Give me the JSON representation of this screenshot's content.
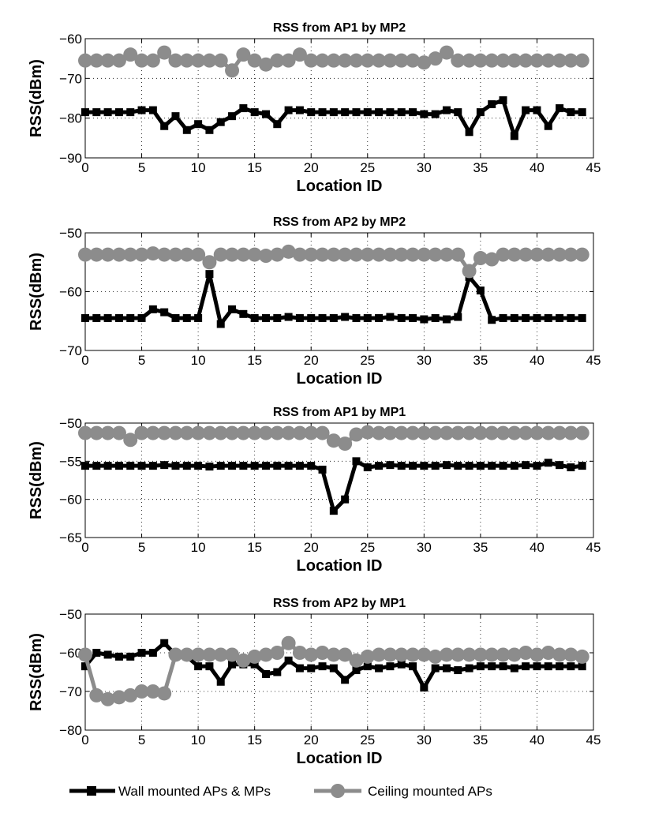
{
  "legend": {
    "placement": "bottom",
    "entries": [
      {
        "label": "Wall mounted APs & MPs",
        "color": "#000000",
        "marker": "square"
      },
      {
        "label": "Ceiling mounted APs",
        "color": "#8c8c8c",
        "marker": "circle"
      }
    ]
  },
  "chart_data": [
    {
      "type": "line",
      "title": "RSS from AP1 by MP2",
      "xlabel": "Location ID",
      "ylabel": "RSS(dBm)",
      "xlim": [
        0,
        45
      ],
      "ylim": [
        -90,
        -60
      ],
      "xticks": [
        0,
        5,
        10,
        15,
        20,
        25,
        30,
        35,
        40,
        45
      ],
      "yticks": [
        -90,
        -80,
        -70,
        -60
      ],
      "grid": true,
      "x": [
        0,
        1,
        2,
        3,
        4,
        5,
        6,
        7,
        8,
        9,
        10,
        11,
        12,
        13,
        14,
        15,
        16,
        17,
        18,
        19,
        20,
        21,
        22,
        23,
        24,
        25,
        26,
        27,
        28,
        29,
        30,
        31,
        32,
        33,
        34,
        35,
        36,
        37,
        38,
        39,
        40,
        41,
        42,
        43,
        44
      ],
      "series": [
        {
          "name": "Wall mounted APs & MPs",
          "values": [
            -78.5,
            -78.5,
            -78.5,
            -78.5,
            -78.5,
            -78,
            -78,
            -82,
            -79.5,
            -83,
            -81.5,
            -83,
            -81,
            -79.5,
            -77.5,
            -78.5,
            -79,
            -81.5,
            -78,
            -78,
            -78.5,
            -78.5,
            -78.5,
            -78.5,
            -78.5,
            -78.5,
            -78.5,
            -78.5,
            -78.5,
            -78.5,
            -79,
            -79,
            -78,
            -78.5,
            -83.5,
            -78.5,
            -76.5,
            -75.5,
            -84.5,
            -78,
            -78,
            -82,
            -77.5,
            -78.5,
            -78.5
          ]
        },
        {
          "name": "Ceiling mounted APs",
          "values": [
            -65.5,
            -65.5,
            -65.5,
            -65.5,
            -64,
            -65.5,
            -65.5,
            -63.5,
            -65.5,
            -65.5,
            -65.5,
            -65.5,
            -65.5,
            -68,
            -64,
            -65.5,
            -66.5,
            -65.5,
            -65.5,
            -64,
            -65.5,
            -65.5,
            -65.5,
            -65.5,
            -65.5,
            -65.5,
            -65.5,
            -65.5,
            -65.5,
            -65.5,
            -66,
            -65,
            -63.5,
            -65.5,
            -65.5,
            -65.5,
            -65.5,
            -65.5,
            -65.5,
            -65.5,
            -65.5,
            -65.5,
            -65.5,
            -65.5,
            -65.5
          ]
        }
      ]
    },
    {
      "type": "line",
      "title": "RSS from AP2 by MP2",
      "xlabel": "Location ID",
      "ylabel": "RSS(dBm)",
      "xlim": [
        0,
        45
      ],
      "ylim": [
        -70,
        -50
      ],
      "xticks": [
        0,
        5,
        10,
        15,
        20,
        25,
        30,
        35,
        40,
        45
      ],
      "yticks": [
        -70,
        -60,
        -50
      ],
      "grid": true,
      "x": [
        0,
        1,
        2,
        3,
        4,
        5,
        6,
        7,
        8,
        9,
        10,
        11,
        12,
        13,
        14,
        15,
        16,
        17,
        18,
        19,
        20,
        21,
        22,
        23,
        24,
        25,
        26,
        27,
        28,
        29,
        30,
        31,
        32,
        33,
        34,
        35,
        36,
        37,
        38,
        39,
        40,
        41,
        42,
        43,
        44
      ],
      "series": [
        {
          "name": "Wall mounted APs & MPs",
          "values": [
            -64.5,
            -64.5,
            -64.5,
            -64.5,
            -64.5,
            -64.5,
            -63,
            -63.5,
            -64.5,
            -64.5,
            -64.5,
            -57,
            -65.5,
            -63,
            -63.8,
            -64.5,
            -64.5,
            -64.5,
            -64.3,
            -64.5,
            -64.5,
            -64.5,
            -64.5,
            -64.3,
            -64.5,
            -64.5,
            -64.5,
            -64.3,
            -64.5,
            -64.5,
            -64.7,
            -64.5,
            -64.7,
            -64.3,
            -57.5,
            -59.8,
            -64.8,
            -64.5,
            -64.5,
            -64.5,
            -64.5,
            -64.5,
            -64.5,
            -64.5,
            -64.5
          ]
        },
        {
          "name": "Ceiling mounted APs",
          "values": [
            -53.7,
            -53.7,
            -53.7,
            -53.7,
            -53.7,
            -53.7,
            -53.5,
            -53.7,
            -53.7,
            -53.7,
            -53.7,
            -55,
            -53.7,
            -53.7,
            -53.7,
            -53.7,
            -53.9,
            -53.7,
            -53.2,
            -53.7,
            -53.7,
            -53.7,
            -53.7,
            -53.7,
            -53.7,
            -53.7,
            -53.7,
            -53.7,
            -53.7,
            -53.7,
            -53.7,
            -53.7,
            -53.7,
            -53.7,
            -56.5,
            -54.3,
            -54.5,
            -53.7,
            -53.7,
            -53.7,
            -53.7,
            -53.7,
            -53.7,
            -53.7,
            -53.7
          ]
        }
      ]
    },
    {
      "type": "line",
      "title": "RSS from AP1 by MP1",
      "xlabel": "Location ID",
      "ylabel": "RSS(dBm)",
      "xlim": [
        0,
        45
      ],
      "ylim": [
        -65,
        -50
      ],
      "xticks": [
        0,
        5,
        10,
        15,
        20,
        25,
        30,
        35,
        40,
        45
      ],
      "yticks": [
        -65,
        -60,
        -55,
        -50
      ],
      "grid": true,
      "x": [
        0,
        1,
        2,
        3,
        4,
        5,
        6,
        7,
        8,
        9,
        10,
        11,
        12,
        13,
        14,
        15,
        16,
        17,
        18,
        19,
        20,
        21,
        22,
        23,
        24,
        25,
        26,
        27,
        28,
        29,
        30,
        31,
        32,
        33,
        34,
        35,
        36,
        37,
        38,
        39,
        40,
        41,
        42,
        43,
        44
      ],
      "series": [
        {
          "name": "Wall mounted APs & MPs",
          "values": [
            -55.6,
            -55.6,
            -55.6,
            -55.6,
            -55.6,
            -55.6,
            -55.6,
            -55.5,
            -55.6,
            -55.6,
            -55.6,
            -55.7,
            -55.6,
            -55.6,
            -55.6,
            -55.6,
            -55.6,
            -55.6,
            -55.6,
            -55.6,
            -55.6,
            -56.1,
            -61.5,
            -60,
            -55,
            -55.8,
            -55.6,
            -55.5,
            -55.6,
            -55.6,
            -55.6,
            -55.6,
            -55.5,
            -55.6,
            -55.6,
            -55.6,
            -55.6,
            -55.6,
            -55.6,
            -55.5,
            -55.6,
            -55.2,
            -55.5,
            -55.8,
            -55.6
          ]
        },
        {
          "name": "Ceiling mounted APs",
          "values": [
            -51.3,
            -51.3,
            -51.3,
            -51.3,
            -52.2,
            -51.3,
            -51.3,
            -51.3,
            -51.3,
            -51.3,
            -51.3,
            -51.3,
            -51.3,
            -51.3,
            -51.3,
            -51.3,
            -51.3,
            -51.3,
            -51.3,
            -51.3,
            -51.3,
            -51.3,
            -52.3,
            -52.7,
            -51.5,
            -51.2,
            -51.3,
            -51.3,
            -51.3,
            -51.3,
            -51.3,
            -51.3,
            -51.3,
            -51.3,
            -51.3,
            -51.3,
            -51.3,
            -51.3,
            -51.3,
            -51.3,
            -51.3,
            -51.3,
            -51.3,
            -51.3,
            -51.3
          ]
        }
      ]
    },
    {
      "type": "line",
      "title": "RSS from AP2 by MP1",
      "xlabel": "Location ID",
      "ylabel": "RSS(dBm)",
      "xlim": [
        0,
        45
      ],
      "ylim": [
        -80,
        -50
      ],
      "xticks": [
        0,
        5,
        10,
        15,
        20,
        25,
        30,
        35,
        40,
        45
      ],
      "yticks": [
        -80,
        -70,
        -60,
        -50
      ],
      "grid": true,
      "x": [
        0,
        1,
        2,
        3,
        4,
        5,
        6,
        7,
        8,
        9,
        10,
        11,
        12,
        13,
        14,
        15,
        16,
        17,
        18,
        19,
        20,
        21,
        22,
        23,
        24,
        25,
        26,
        27,
        28,
        29,
        30,
        31,
        32,
        33,
        34,
        35,
        36,
        37,
        38,
        39,
        40,
        41,
        42,
        43,
        44
      ],
      "series": [
        {
          "name": "Wall mounted APs & MPs",
          "values": [
            -63.5,
            -60,
            -60.5,
            -61,
            -61,
            -60,
            -60,
            -57.5,
            -60.5,
            -61,
            -63.5,
            -63.5,
            -67.5,
            -63,
            -63,
            -63,
            -65.5,
            -65,
            -62,
            -64,
            -64,
            -63.5,
            -64,
            -67,
            -64.5,
            -63.5,
            -64,
            -63.5,
            -63,
            -63.5,
            -69,
            -64,
            -64,
            -64.5,
            -64,
            -63.5,
            -63.5,
            -63.5,
            -64,
            -63.5,
            -63.5,
            -63.5,
            -63.5,
            -63.5,
            -63.5
          ]
        },
        {
          "name": "Ceiling mounted APs",
          "values": [
            -60.5,
            -71,
            -72,
            -71.5,
            -71,
            -70,
            -70,
            -70.5,
            -60.5,
            -60.5,
            -60.5,
            -60.5,
            -60.5,
            -60.5,
            -62,
            -61,
            -60.5,
            -60,
            -57.5,
            -60,
            -60.5,
            -60,
            -60.5,
            -60.5,
            -62,
            -61,
            -60.5,
            -60.5,
            -60.5,
            -60.5,
            -60.5,
            -61,
            -60.5,
            -60.5,
            -60.5,
            -60.5,
            -60.5,
            -60.5,
            -60.5,
            -60,
            -60.5,
            -60,
            -60.5,
            -60.5,
            -61
          ]
        }
      ]
    }
  ]
}
